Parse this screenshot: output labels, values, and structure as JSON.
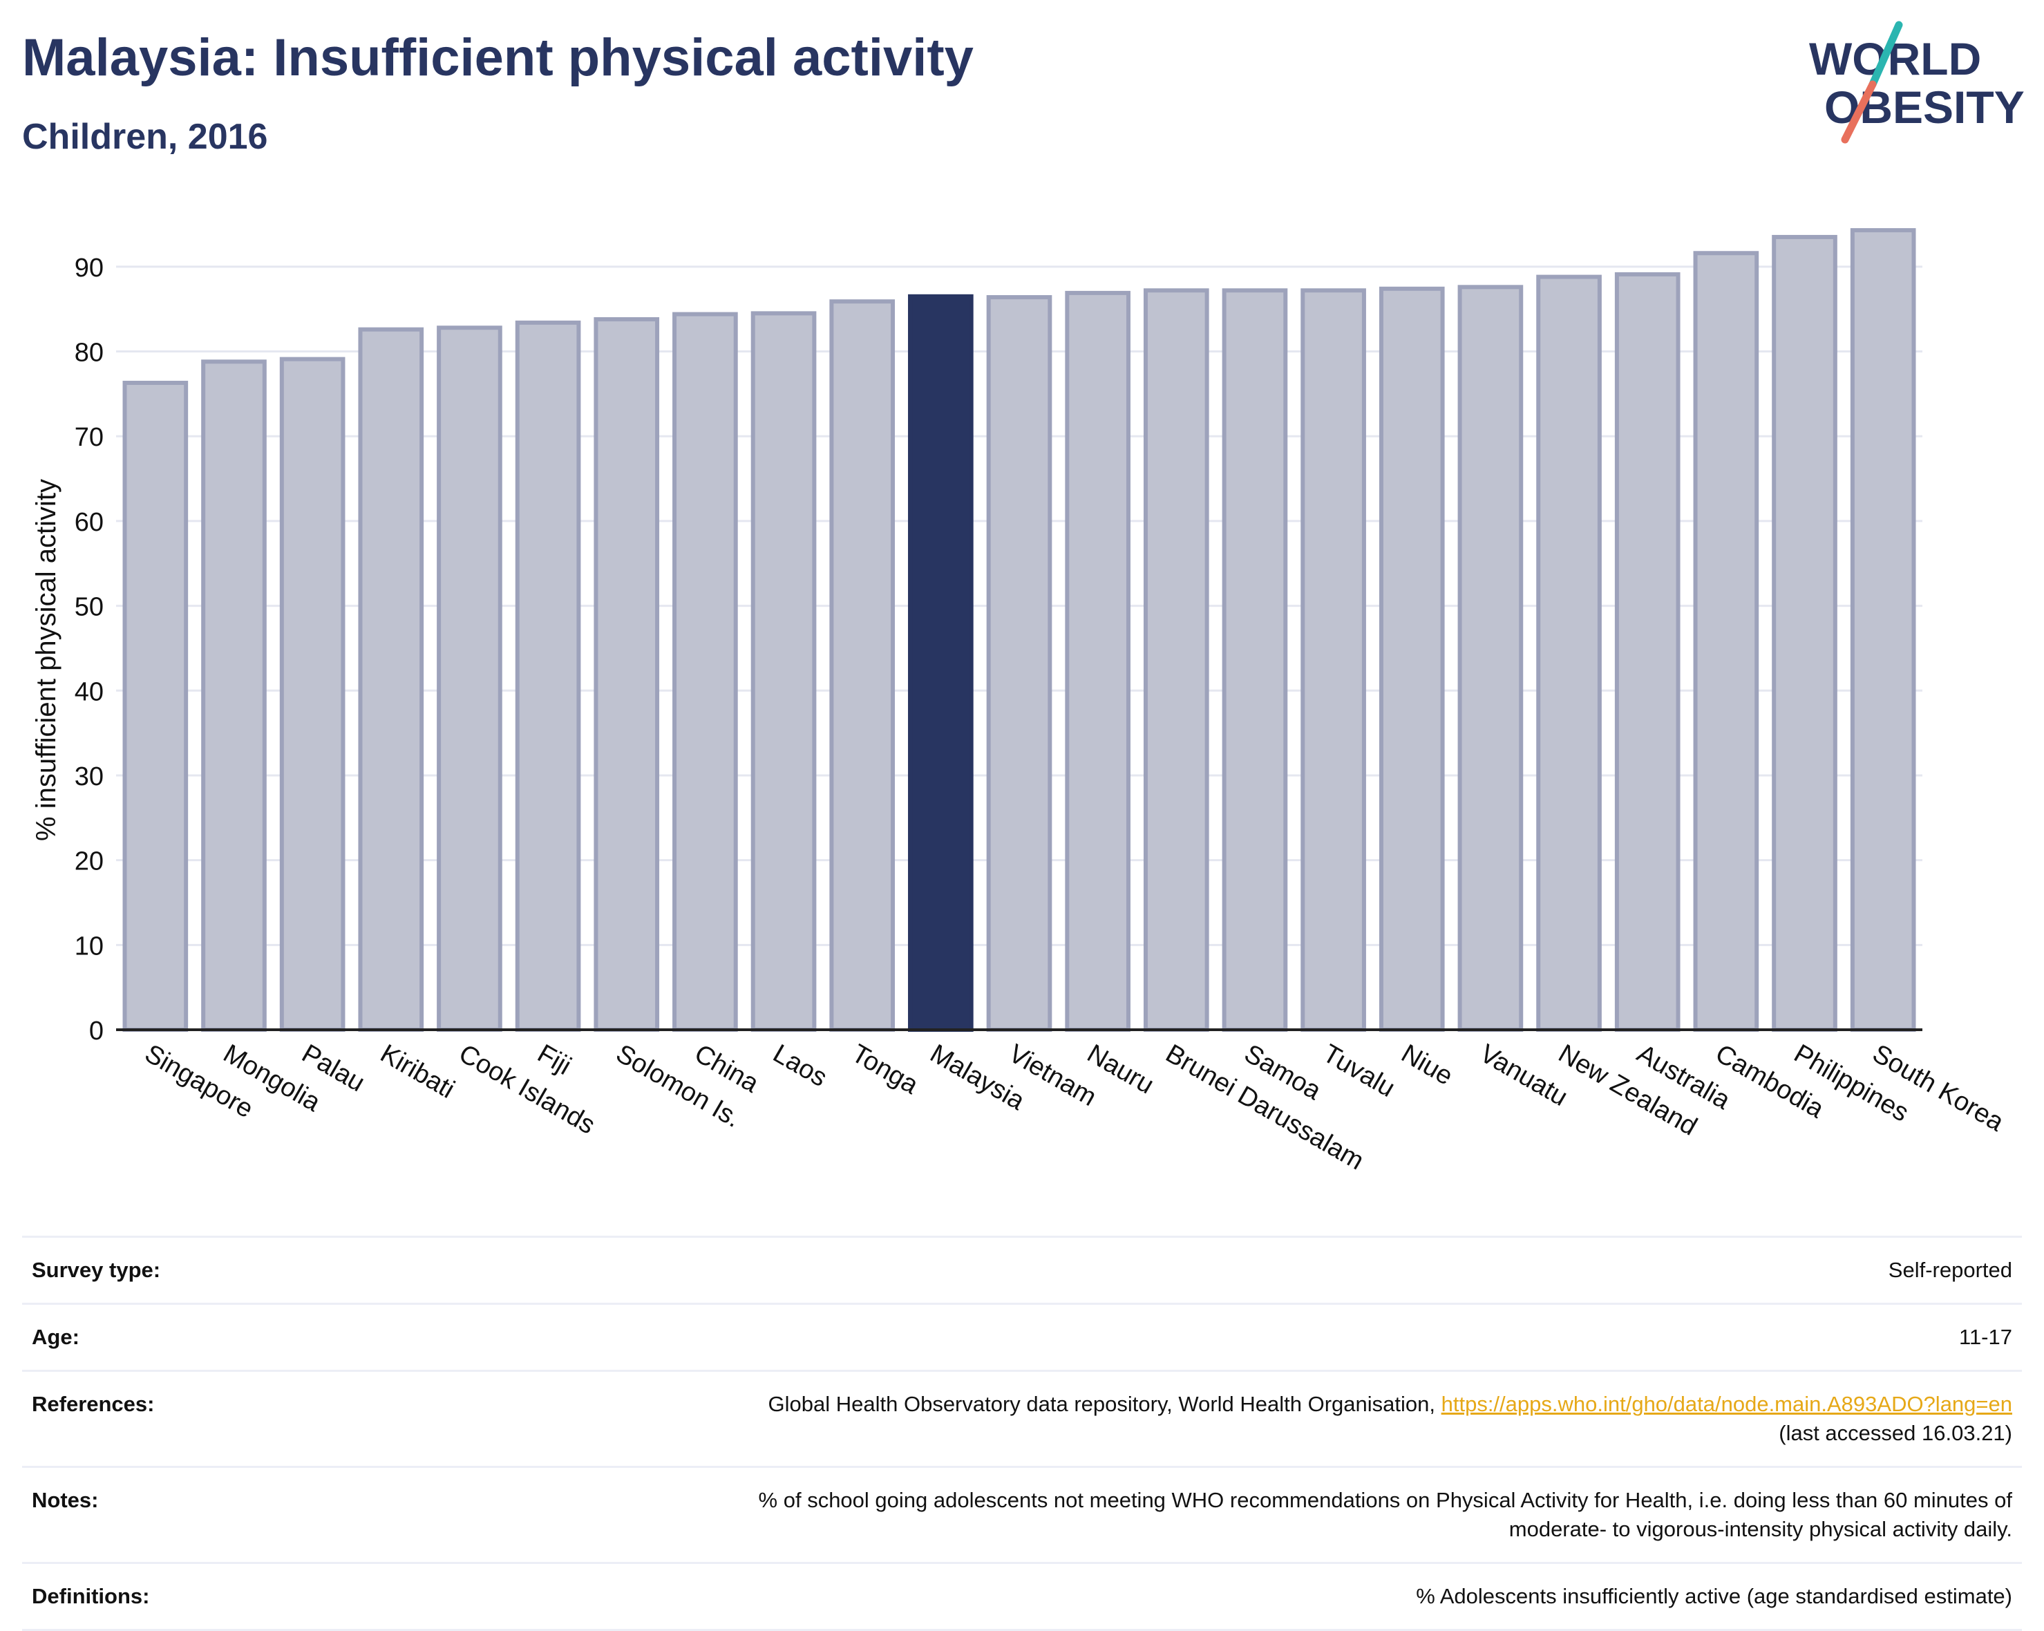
{
  "header": {
    "title": "Malaysia: Insufficient physical activity",
    "subtitle": "Children, 2016"
  },
  "logo": {
    "line1": "WORLD",
    "line2": "OBESITY",
    "icon": "slash-logo-mark",
    "colors": {
      "text": "#283561",
      "slash_top": "#2bb5b0",
      "slash_bottom": "#e8705c"
    }
  },
  "chart_data": {
    "type": "bar",
    "ylabel": "% insufficient physical activity",
    "xlabel": "",
    "ylim": [
      0,
      97
    ],
    "yticks": [
      0,
      10,
      20,
      30,
      40,
      50,
      60,
      70,
      80,
      90
    ],
    "grid": true,
    "highlight": "Malaysia",
    "categories": [
      "Singapore",
      "Mongolia",
      "Palau",
      "Kiribati",
      "Cook Islands",
      "Fiji",
      "Solomon Is.",
      "China",
      "Laos",
      "Tonga",
      "Malaysia",
      "Vietnam",
      "Nauru",
      "Brunei Darussalam",
      "Samoa",
      "Tuvalu",
      "Niue",
      "Vanuatu",
      "New Zealand",
      "Australia",
      "Cambodia",
      "Philippines",
      "South Korea"
    ],
    "values": [
      76.3,
      78.8,
      79.1,
      82.6,
      82.8,
      83.4,
      83.8,
      84.4,
      84.5,
      85.9,
      86.5,
      86.4,
      86.9,
      87.2,
      87.2,
      87.2,
      87.4,
      87.6,
      88.8,
      89.1,
      91.6,
      93.5,
      94.3
    ],
    "colors": {
      "bar": "#bfc2d0",
      "bar_edge": "#9da2bb",
      "highlight": "#283561",
      "grid": "#e5e7f0",
      "axis": "#222222"
    }
  },
  "info": {
    "rows": [
      {
        "label": "Survey type:",
        "value": "Self-reported"
      },
      {
        "label": "Age:",
        "value": "11-17"
      },
      {
        "label": "References:",
        "value": "Global Health Observatory data repository, World Health Organisation, ",
        "link": "https://apps.who.int/gho/data/node.main.A893ADO?lang=en",
        "value2": "(last accessed 16.03.21)"
      },
      {
        "label": "Notes:",
        "value": "% of school going adolescents not meeting WHO recommendations on Physical Activity for Health, i.e. doing less than 60 minutes of",
        "value2": "moderate- to vigorous-intensity physical activity daily."
      },
      {
        "label": "Definitions:",
        "value": "% Adolescents insufficiently active (age standardised estimate)"
      }
    ]
  }
}
